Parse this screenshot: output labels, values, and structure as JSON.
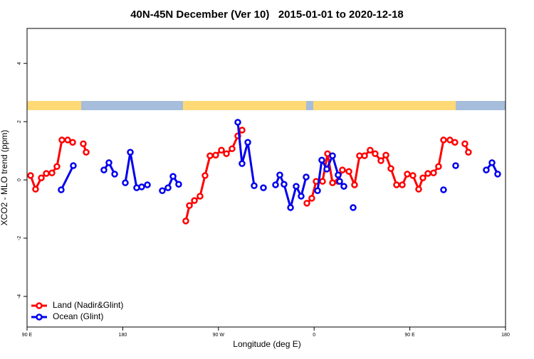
{
  "chart_data": {
    "type": "line",
    "title": "40N-45N December (Ver 10)   2015-01-01 to 2020-12-18",
    "x_label": "Longitude (deg E)",
    "y_label": "XCO2 - MLO trend (ppm)",
    "xlim": [
      90,
      540
    ],
    "ylim": [
      -5.05,
      5.2
    ],
    "xticks": [
      {
        "value": 90,
        "label": "90 E"
      },
      180,
      {
        "value": 270,
        "label": "90 W"
      },
      {
        "value": 360,
        "label": "0"
      },
      {
        "value": 450,
        "label": "90 E"
      },
      {
        "value": 540,
        "label": "180"
      }
    ],
    "yticks": [
      -4,
      -2,
      0,
      2,
      4
    ],
    "legend": "bottomleft",
    "series": [
      {
        "name": "Land (Nadir&Glint)",
        "color": "#ff0000",
        "x": [
          93.3,
          98.0,
          103.4,
          108.1,
          113.4,
          118.1,
          122.8,
          128.2,
          132.9,
          null,
          142.9,
          145.6,
          null,
          239.3,
          242.7,
          247.4,
          252.7,
          257.4,
          262.1,
          267.4,
          272.8,
          277.5,
          282.8,
          288.2,
          292.2,
          null,
          353.2,
          357.8,
          361.9,
          367.9,
          372.6,
          377.3,
          382.6,
          386.6,
          392.7,
          398.0,
          402.7,
          407.4,
          412.7,
          417.4,
          422.8,
          427.5,
          432.2,
          437.5,
          442.9,
          447.6,
          452.9,
          458.3,
          462.3,
          467.0,
          472.3,
          477.0,
          481.7,
          487.7,
          492.4,
          null,
          501.8,
          505.1
        ],
        "values": [
          0.15,
          -0.32,
          0.07,
          0.22,
          0.24,
          0.46,
          1.37,
          1.37,
          1.29,
          null,
          1.24,
          0.95,
          null,
          -1.41,
          -0.88,
          -0.71,
          -0.56,
          0.15,
          0.83,
          0.85,
          1.02,
          0.9,
          1.07,
          1.51,
          1.71,
          null,
          -0.8,
          -0.63,
          -0.05,
          -0.05,
          0.9,
          -0.1,
          -0.05,
          0.34,
          0.29,
          -0.17,
          0.83,
          0.83,
          1.02,
          0.9,
          0.66,
          0.85,
          0.39,
          -0.17,
          -0.17,
          0.2,
          0.15,
          -0.32,
          0.07,
          0.22,
          0.24,
          0.46,
          1.37,
          1.37,
          1.29,
          null,
          1.24,
          0.95
        ]
      },
      {
        "name": "Ocean (Glint)",
        "color": "#0000ee",
        "x": [
          122.1,
          133.5,
          null,
          162.3,
          167.0,
          172.4,
          null,
          182.4,
          187.1,
          193.1,
          197.8,
          203.2,
          null,
          217.2,
          222.6,
          227.3,
          232.6,
          null,
          288.2,
          292.2,
          297.6,
          303.6,
          null,
          312.3,
          null,
          323.7,
          327.7,
          331.7,
          337.8,
          343.1,
          347.8,
          352.5,
          null,
          363.2,
          367.2,
          371.9,
          377.3,
          382.6,
          384.0,
          388.0,
          null,
          396.7,
          null,
          481.7,
          null,
          493.1,
          null,
          521.9,
          527.3,
          532.6
        ],
        "values": [
          -0.34,
          0.49,
          null,
          0.34,
          0.59,
          0.2,
          null,
          -0.1,
          0.95,
          -0.27,
          -0.24,
          -0.17,
          null,
          -0.37,
          -0.27,
          0.12,
          -0.15,
          null,
          1.98,
          0.56,
          1.29,
          -0.2,
          null,
          -0.27,
          null,
          -0.17,
          0.17,
          -0.15,
          -0.95,
          -0.22,
          -0.56,
          0.1,
          null,
          -0.37,
          0.68,
          0.37,
          0.83,
          0.17,
          -0.05,
          -0.22,
          null,
          -0.95,
          null,
          -0.34,
          null,
          0.49,
          null,
          0.34,
          0.59,
          0.2
        ]
      }
    ]
  }
}
